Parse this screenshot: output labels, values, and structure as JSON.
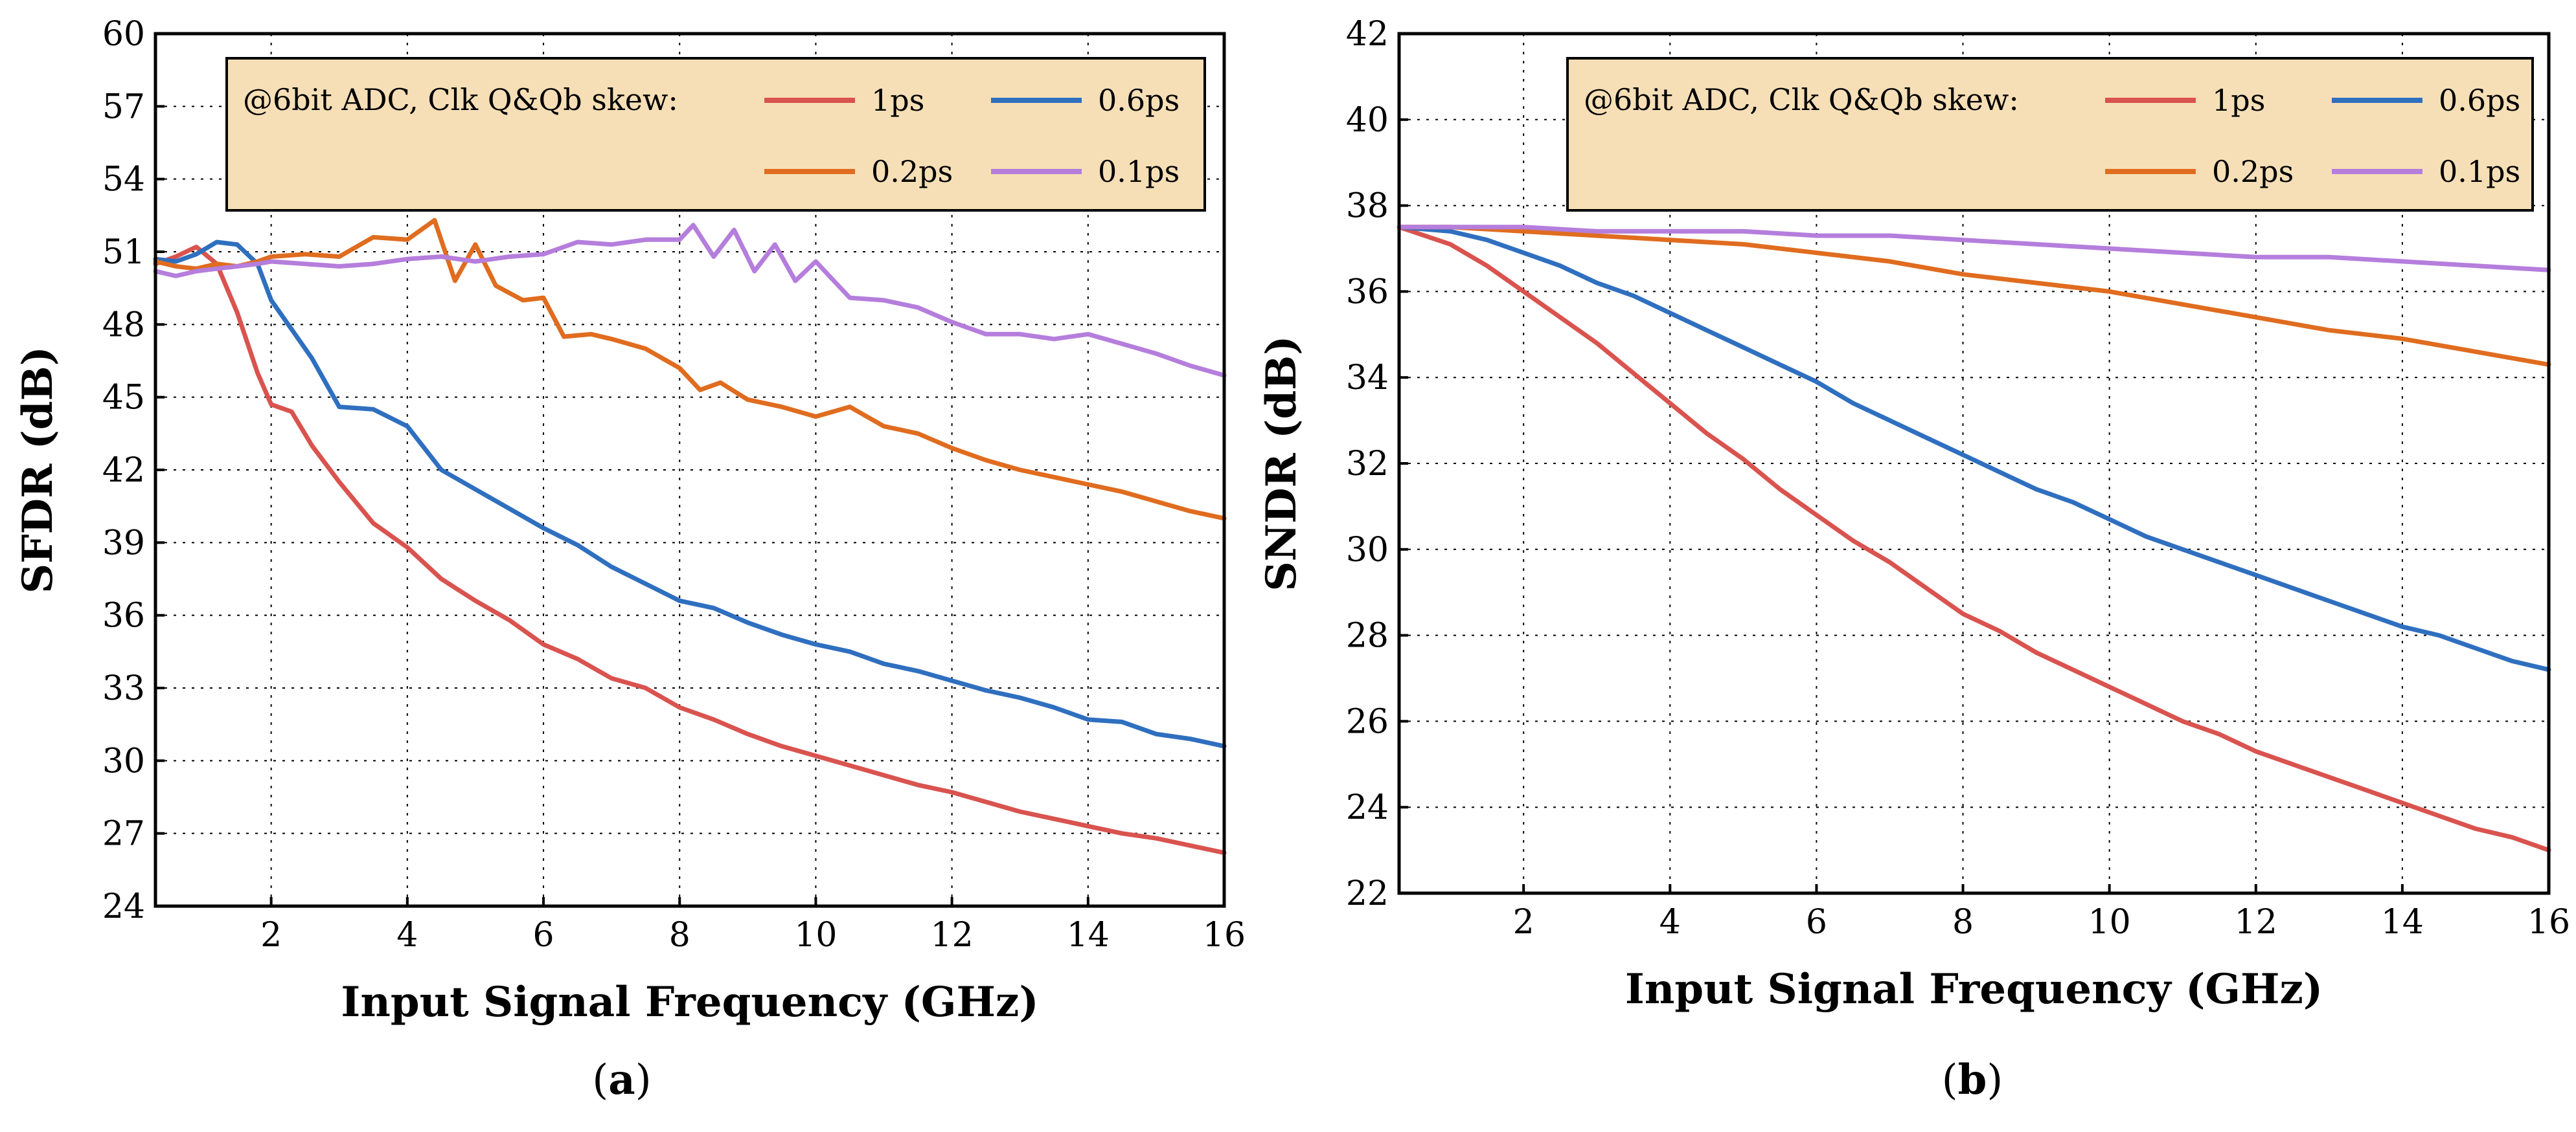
{
  "chart_data": [
    {
      "type": "line",
      "panel_label": "a",
      "xlabel": "Input Signal Frequency (GHz)",
      "ylabel": "SFDR (dB)",
      "xlim": [
        0.3,
        16
      ],
      "ylim": [
        24,
        60
      ],
      "xticks": [
        2,
        4,
        6,
        8,
        10,
        12,
        14,
        16
      ],
      "yticks": [
        24,
        27,
        30,
        33,
        36,
        39,
        42,
        45,
        48,
        51,
        54,
        57,
        60
      ],
      "grid": true,
      "legend_title": "@6bit ADC, Clk Q&Qb skew:",
      "legend_position": "top",
      "series": [
        {
          "name": "1ps",
          "color": "#d9534f",
          "x": [
            0.3,
            0.6,
            0.9,
            1.2,
            1.5,
            1.8,
            2.0,
            2.3,
            2.6,
            3.0,
            3.5,
            4.0,
            4.5,
            5.0,
            5.5,
            6.0,
            6.5,
            7.0,
            7.5,
            8.0,
            8.5,
            9.0,
            9.5,
            10.0,
            10.5,
            11.0,
            11.5,
            12.0,
            12.5,
            13.0,
            13.5,
            14.0,
            14.5,
            15.0,
            15.5,
            16.0
          ],
          "y": [
            50.5,
            50.8,
            51.2,
            50.5,
            48.5,
            46.0,
            44.7,
            44.4,
            43.0,
            41.5,
            39.8,
            38.8,
            37.5,
            36.6,
            35.8,
            34.8,
            34.2,
            33.4,
            33.0,
            32.2,
            31.7,
            31.1,
            30.6,
            30.2,
            29.8,
            29.4,
            29.0,
            28.7,
            28.3,
            27.9,
            27.6,
            27.3,
            27.0,
            26.8,
            26.5,
            26.2
          ]
        },
        {
          "name": "0.6ps",
          "color": "#2f6fbf",
          "x": [
            0.3,
            0.6,
            0.9,
            1.2,
            1.5,
            1.8,
            2.0,
            2.3,
            2.6,
            3.0,
            3.5,
            4.0,
            4.5,
            5.0,
            5.5,
            6.0,
            6.5,
            7.0,
            7.5,
            8.0,
            8.5,
            9.0,
            9.5,
            10.0,
            10.5,
            11.0,
            11.5,
            12.0,
            12.5,
            13.0,
            13.5,
            14.0,
            14.5,
            15.0,
            15.5,
            16.0
          ],
          "y": [
            50.7,
            50.6,
            50.9,
            51.4,
            51.3,
            50.5,
            49.0,
            47.8,
            46.6,
            44.6,
            44.5,
            43.8,
            42.0,
            41.2,
            40.4,
            39.6,
            38.9,
            38.0,
            37.3,
            36.6,
            36.3,
            35.7,
            35.2,
            34.8,
            34.5,
            34.0,
            33.7,
            33.3,
            32.9,
            32.6,
            32.2,
            31.7,
            31.6,
            31.1,
            30.9,
            30.6
          ]
        },
        {
          "name": "0.2ps",
          "color": "#e06c1f",
          "x": [
            0.3,
            0.6,
            0.9,
            1.2,
            1.5,
            1.8,
            2.0,
            2.5,
            3.0,
            3.5,
            4.0,
            4.4,
            4.7,
            5.0,
            5.3,
            5.7,
            6.0,
            6.3,
            6.7,
            7.0,
            7.5,
            8.0,
            8.3,
            8.6,
            9.0,
            9.5,
            10.0,
            10.5,
            11.0,
            11.5,
            12.0,
            12.5,
            13.0,
            13.5,
            14.0,
            14.5,
            15.0,
            15.5,
            16.0
          ],
          "y": [
            50.6,
            50.4,
            50.3,
            50.5,
            50.4,
            50.6,
            50.8,
            50.9,
            50.8,
            51.6,
            51.5,
            52.3,
            49.8,
            51.3,
            49.6,
            49.0,
            49.1,
            47.5,
            47.6,
            47.4,
            47.0,
            46.2,
            45.3,
            45.6,
            44.9,
            44.6,
            44.2,
            44.6,
            43.8,
            43.5,
            42.9,
            42.4,
            42.0,
            41.7,
            41.4,
            41.1,
            40.7,
            40.3,
            40.0
          ]
        },
        {
          "name": "0.1ps",
          "color": "#b57edc",
          "x": [
            0.3,
            0.6,
            0.9,
            1.2,
            1.5,
            1.8,
            2.0,
            2.5,
            3.0,
            3.5,
            4.0,
            4.5,
            5.0,
            5.5,
            6.0,
            6.5,
            7.0,
            7.5,
            8.0,
            8.2,
            8.5,
            8.8,
            9.1,
            9.4,
            9.7,
            10.0,
            10.5,
            11.0,
            11.5,
            12.0,
            12.5,
            13.0,
            13.5,
            14.0,
            14.5,
            15.0,
            15.5,
            16.0
          ],
          "y": [
            50.2,
            50.0,
            50.2,
            50.3,
            50.4,
            50.5,
            50.6,
            50.5,
            50.4,
            50.5,
            50.7,
            50.8,
            50.6,
            50.8,
            50.9,
            51.4,
            51.3,
            51.5,
            51.5,
            52.1,
            50.8,
            51.9,
            50.2,
            51.3,
            49.8,
            50.6,
            49.1,
            49.0,
            48.7,
            48.1,
            47.6,
            47.6,
            47.4,
            47.6,
            47.2,
            46.8,
            46.3,
            45.9
          ]
        }
      ]
    },
    {
      "type": "line",
      "panel_label": "b",
      "xlabel": "Input Signal Frequency (GHz)",
      "ylabel": "SNDR (dB)",
      "xlim": [
        0.3,
        16
      ],
      "ylim": [
        22,
        42
      ],
      "xticks": [
        2,
        4,
        6,
        8,
        10,
        12,
        14,
        16
      ],
      "yticks": [
        22,
        24,
        26,
        28,
        30,
        32,
        34,
        36,
        38,
        40,
        42
      ],
      "grid": true,
      "legend_title": "@6bit ADC, Clk Q&Qb skew:",
      "legend_position": "top",
      "series": [
        {
          "name": "1ps",
          "color": "#d9534f",
          "x": [
            0.3,
            1.0,
            1.5,
            2.0,
            2.5,
            3.0,
            3.5,
            4.0,
            4.5,
            5.0,
            5.5,
            6.0,
            6.5,
            7.0,
            7.5,
            8.0,
            8.5,
            9.0,
            9.5,
            10.0,
            10.5,
            11.0,
            11.5,
            12.0,
            12.5,
            13.0,
            13.5,
            14.0,
            14.5,
            15.0,
            15.5,
            16.0
          ],
          "y": [
            37.5,
            37.1,
            36.6,
            36.0,
            35.4,
            34.8,
            34.1,
            33.4,
            32.7,
            32.1,
            31.4,
            30.8,
            30.2,
            29.7,
            29.1,
            28.5,
            28.1,
            27.6,
            27.2,
            26.8,
            26.4,
            26.0,
            25.7,
            25.3,
            25.0,
            24.7,
            24.4,
            24.1,
            23.8,
            23.5,
            23.3,
            23.0
          ]
        },
        {
          "name": "0.6ps",
          "color": "#2f6fbf",
          "x": [
            0.3,
            1.0,
            1.5,
            2.0,
            2.5,
            3.0,
            3.5,
            4.0,
            4.5,
            5.0,
            5.5,
            6.0,
            6.5,
            7.0,
            7.5,
            8.0,
            8.5,
            9.0,
            9.5,
            10.0,
            10.5,
            11.0,
            11.5,
            12.0,
            12.5,
            13.0,
            13.5,
            14.0,
            14.5,
            15.0,
            15.5,
            16.0
          ],
          "y": [
            37.5,
            37.4,
            37.2,
            36.9,
            36.6,
            36.2,
            35.9,
            35.5,
            35.1,
            34.7,
            34.3,
            33.9,
            33.4,
            33.0,
            32.6,
            32.2,
            31.8,
            31.4,
            31.1,
            30.7,
            30.3,
            30.0,
            29.7,
            29.4,
            29.1,
            28.8,
            28.5,
            28.2,
            28.0,
            27.7,
            27.4,
            27.2
          ]
        },
        {
          "name": "0.2ps",
          "color": "#e06c1f",
          "x": [
            0.3,
            1.0,
            2.0,
            3.0,
            4.0,
            5.0,
            6.0,
            7.0,
            8.0,
            9.0,
            10.0,
            11.0,
            12.0,
            13.0,
            14.0,
            15.0,
            16.0
          ],
          "y": [
            37.5,
            37.5,
            37.4,
            37.3,
            37.2,
            37.1,
            36.9,
            36.7,
            36.4,
            36.2,
            36.0,
            35.7,
            35.4,
            35.1,
            34.9,
            34.6,
            34.3
          ]
        },
        {
          "name": "0.1ps",
          "color": "#b57edc",
          "x": [
            0.3,
            1.0,
            2.0,
            3.0,
            4.0,
            5.0,
            6.0,
            7.0,
            8.0,
            9.0,
            10.0,
            11.0,
            12.0,
            13.0,
            14.0,
            15.0,
            16.0
          ],
          "y": [
            37.5,
            37.5,
            37.5,
            37.4,
            37.4,
            37.4,
            37.3,
            37.3,
            37.2,
            37.1,
            37.0,
            36.9,
            36.8,
            36.8,
            36.7,
            36.6,
            36.5
          ]
        }
      ]
    }
  ]
}
